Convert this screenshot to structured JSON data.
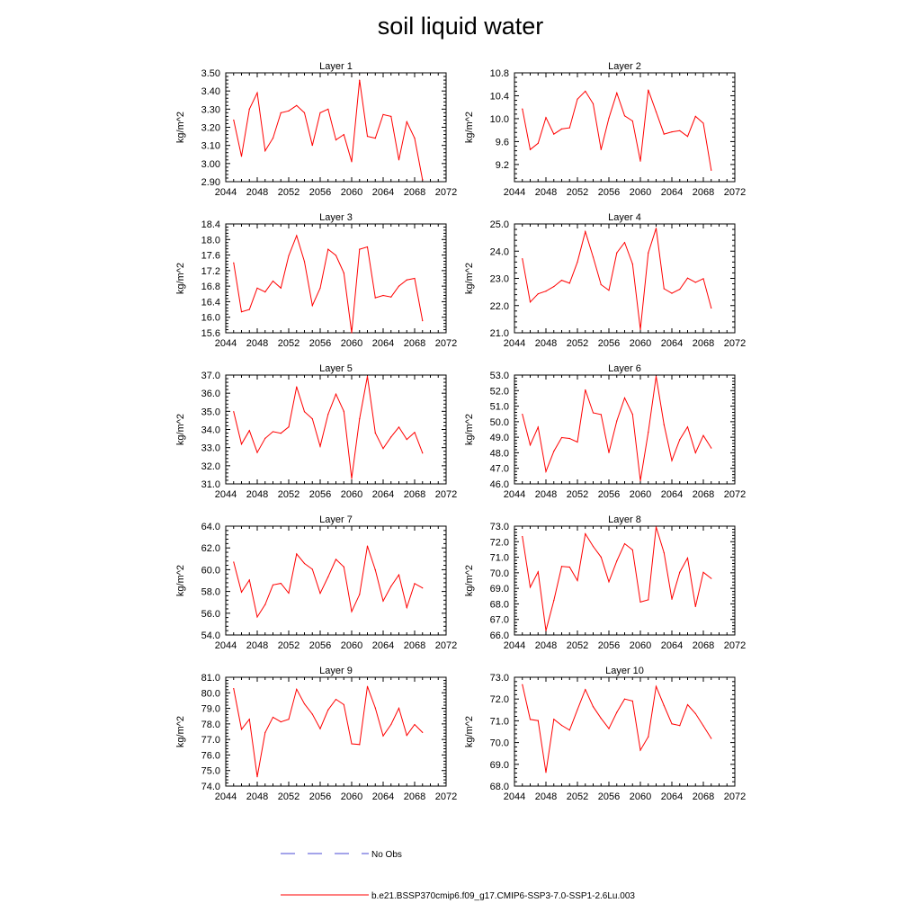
{
  "title": "soil liquid water",
  "colors": {
    "model_line": "#ff0000",
    "obs_line": "#4a4ad6",
    "axis": "#000000"
  },
  "legend": [
    {
      "label": "No Obs",
      "style": "dashed",
      "color": "#4a4ad6"
    },
    {
      "label": "b.e21.BSSP370cmip6.f09_g17.CMIP6-SSP3-7.0-SSP1-2.6Lu.003",
      "style": "solid",
      "color": "#ff0000"
    }
  ],
  "chart_data": [
    {
      "type": "line",
      "title": "Layer 1",
      "ylabel": "kg/m^2",
      "xlim": [
        2044,
        2072
      ],
      "xticks": [
        2044,
        2048,
        2052,
        2056,
        2060,
        2064,
        2068,
        2072
      ],
      "ylim": [
        2.9,
        3.5
      ],
      "yticks": [
        2.9,
        3.0,
        3.1,
        3.2,
        3.3,
        3.4,
        3.5
      ],
      "decimals": 2,
      "series": [
        {
          "x": [
            2045,
            2046,
            2047,
            2048,
            2049,
            2050,
            2051,
            2052,
            2053,
            2054,
            2055,
            2056,
            2057,
            2058,
            2059,
            2060,
            2061,
            2062,
            2063,
            2064,
            2065,
            2066,
            2067,
            2068,
            2069
          ],
          "values": [
            3.24,
            3.04,
            3.3,
            3.39,
            3.07,
            3.14,
            3.28,
            3.29,
            3.32,
            3.28,
            3.1,
            3.28,
            3.3,
            3.13,
            3.16,
            3.01,
            3.46,
            3.15,
            3.14,
            3.27,
            3.26,
            3.02,
            3.23,
            3.14,
            2.91
          ]
        }
      ]
    },
    {
      "type": "line",
      "title": "Layer 2",
      "ylabel": "kg/m^2",
      "xlim": [
        2044,
        2072
      ],
      "xticks": [
        2044,
        2048,
        2052,
        2056,
        2060,
        2064,
        2068,
        2072
      ],
      "ylim": [
        8.9,
        10.8
      ],
      "yticks": [
        9.2,
        9.6,
        10.0,
        10.4,
        10.8
      ],
      "decimals": 1,
      "series": [
        {
          "x": [
            2045,
            2046,
            2047,
            2048,
            2049,
            2050,
            2051,
            2052,
            2053,
            2054,
            2055,
            2056,
            2057,
            2058,
            2059,
            2060,
            2061,
            2062,
            2063,
            2064,
            2065,
            2066,
            2067,
            2068,
            2069
          ],
          "values": [
            10.17,
            9.46,
            9.57,
            10.02,
            9.73,
            9.82,
            9.84,
            10.34,
            10.48,
            10.26,
            9.46,
            10.01,
            10.45,
            10.05,
            9.96,
            9.26,
            10.5,
            10.12,
            9.73,
            9.77,
            9.79,
            9.69,
            10.04,
            9.92,
            9.1
          ]
        }
      ]
    },
    {
      "type": "line",
      "title": "Layer 3",
      "ylabel": "kg/m^2",
      "xlim": [
        2044,
        2072
      ],
      "xticks": [
        2044,
        2048,
        2052,
        2056,
        2060,
        2064,
        2068,
        2072
      ],
      "ylim": [
        15.6,
        18.4
      ],
      "yticks": [
        15.6,
        16.0,
        16.4,
        16.8,
        17.2,
        17.6,
        18.0,
        18.4
      ],
      "decimals": 1,
      "series": [
        {
          "x": [
            2045,
            2046,
            2047,
            2048,
            2049,
            2050,
            2051,
            2052,
            2053,
            2054,
            2055,
            2056,
            2057,
            2058,
            2059,
            2060,
            2061,
            2062,
            2063,
            2064,
            2065,
            2066,
            2067,
            2068,
            2069
          ],
          "values": [
            17.4,
            16.14,
            16.2,
            16.75,
            16.65,
            16.93,
            16.75,
            17.58,
            18.1,
            17.43,
            16.3,
            16.75,
            17.75,
            17.59,
            17.14,
            15.6,
            17.75,
            17.81,
            16.5,
            16.56,
            16.52,
            16.8,
            16.96,
            17.0,
            15.91
          ]
        }
      ]
    },
    {
      "type": "line",
      "title": "Layer 4",
      "ylabel": "kg/m^2",
      "xlim": [
        2044,
        2072
      ],
      "xticks": [
        2044,
        2048,
        2052,
        2056,
        2060,
        2064,
        2068,
        2072
      ],
      "ylim": [
        21.0,
        25.0
      ],
      "yticks": [
        21.0,
        22.0,
        23.0,
        24.0,
        25.0
      ],
      "decimals": 1,
      "series": [
        {
          "x": [
            2045,
            2046,
            2047,
            2048,
            2049,
            2050,
            2051,
            2052,
            2053,
            2054,
            2055,
            2056,
            2057,
            2058,
            2059,
            2060,
            2061,
            2062,
            2063,
            2064,
            2065,
            2066,
            2067,
            2068,
            2069
          ],
          "values": [
            23.72,
            22.13,
            22.43,
            22.53,
            22.7,
            22.93,
            22.82,
            23.6,
            24.72,
            23.78,
            22.77,
            22.56,
            23.94,
            24.32,
            23.53,
            21.12,
            23.94,
            24.84,
            22.62,
            22.45,
            22.6,
            23.01,
            22.85,
            22.99,
            21.91
          ]
        }
      ]
    },
    {
      "type": "line",
      "title": "Layer 5",
      "ylabel": "kg/m^2",
      "xlim": [
        2044,
        2072
      ],
      "xticks": [
        2044,
        2048,
        2052,
        2056,
        2060,
        2064,
        2068,
        2072
      ],
      "ylim": [
        31.0,
        37.0
      ],
      "yticks": [
        31.0,
        32.0,
        33.0,
        34.0,
        35.0,
        36.0,
        37.0
      ],
      "decimals": 1,
      "series": [
        {
          "x": [
            2045,
            2046,
            2047,
            2048,
            2049,
            2050,
            2051,
            2052,
            2053,
            2054,
            2055,
            2056,
            2057,
            2058,
            2059,
            2060,
            2061,
            2062,
            2063,
            2064,
            2065,
            2066,
            2067,
            2068,
            2069
          ],
          "values": [
            34.98,
            33.19,
            33.94,
            32.73,
            33.51,
            33.88,
            33.79,
            34.14,
            36.35,
            34.98,
            34.59,
            33.07,
            34.84,
            35.95,
            35.0,
            31.3,
            34.59,
            36.93,
            33.81,
            32.95,
            33.59,
            34.13,
            33.45,
            33.84,
            32.7
          ]
        }
      ]
    },
    {
      "type": "line",
      "title": "Layer 6",
      "ylabel": "kg/m^2",
      "xlim": [
        2044,
        2072
      ],
      "xticks": [
        2044,
        2048,
        2052,
        2056,
        2060,
        2064,
        2068,
        2072
      ],
      "ylim": [
        46.0,
        53.0
      ],
      "yticks": [
        46.0,
        47.0,
        48.0,
        49.0,
        50.0,
        51.0,
        52.0,
        53.0
      ],
      "decimals": 1,
      "series": [
        {
          "x": [
            2045,
            2046,
            2047,
            2048,
            2049,
            2050,
            2051,
            2052,
            2053,
            2054,
            2055,
            2056,
            2057,
            2058,
            2059,
            2060,
            2061,
            2062,
            2063,
            2064,
            2065,
            2066,
            2067,
            2068,
            2069
          ],
          "values": [
            50.48,
            48.5,
            49.65,
            46.79,
            48.1,
            48.98,
            48.92,
            48.69,
            52.05,
            50.57,
            50.46,
            48.01,
            50.05,
            51.53,
            50.48,
            46.2,
            49.33,
            52.92,
            49.81,
            47.5,
            48.85,
            49.67,
            48.0,
            49.11,
            48.31
          ]
        }
      ]
    },
    {
      "type": "line",
      "title": "Layer 7",
      "ylabel": "kg/m^2",
      "xlim": [
        2044,
        2072
      ],
      "xticks": [
        2044,
        2048,
        2052,
        2056,
        2060,
        2064,
        2068,
        2072
      ],
      "ylim": [
        54.0,
        64.0
      ],
      "yticks": [
        54.0,
        56.0,
        58.0,
        60.0,
        62.0,
        64.0
      ],
      "decimals": 1,
      "series": [
        {
          "x": [
            2045,
            2046,
            2047,
            2048,
            2049,
            2050,
            2051,
            2052,
            2053,
            2054,
            2055,
            2056,
            2057,
            2058,
            2059,
            2060,
            2061,
            2062,
            2063,
            2064,
            2065,
            2066,
            2067,
            2068,
            2069
          ],
          "values": [
            60.7,
            57.93,
            59.05,
            55.65,
            56.79,
            58.6,
            58.74,
            57.84,
            61.45,
            60.57,
            60.04,
            57.83,
            59.34,
            60.95,
            60.26,
            56.15,
            57.73,
            62.17,
            59.98,
            57.12,
            58.47,
            59.53,
            56.52,
            58.73,
            58.32
          ]
        }
      ]
    },
    {
      "type": "line",
      "title": "Layer 8",
      "ylabel": "kg/m^2",
      "xlim": [
        2044,
        2072
      ],
      "xticks": [
        2044,
        2048,
        2052,
        2056,
        2060,
        2064,
        2068,
        2072
      ],
      "ylim": [
        66.0,
        73.0
      ],
      "yticks": [
        66.0,
        67.0,
        68.0,
        69.0,
        70.0,
        71.0,
        72.0,
        73.0
      ],
      "decimals": 1,
      "series": [
        {
          "x": [
            2045,
            2046,
            2047,
            2048,
            2049,
            2050,
            2051,
            2052,
            2053,
            2054,
            2055,
            2056,
            2057,
            2058,
            2059,
            2060,
            2061,
            2062,
            2063,
            2064,
            2065,
            2066,
            2067,
            2068,
            2069
          ],
          "values": [
            72.33,
            69.07,
            70.06,
            66.28,
            68.22,
            70.41,
            70.37,
            69.5,
            72.51,
            71.7,
            71.01,
            69.42,
            70.76,
            71.87,
            71.47,
            68.12,
            68.26,
            72.95,
            71.29,
            68.3,
            70.04,
            70.95,
            67.83,
            70.03,
            69.64
          ]
        }
      ]
    },
    {
      "type": "line",
      "title": "Layer 9",
      "ylabel": "kg/m^2",
      "xlim": [
        2044,
        2072
      ],
      "xticks": [
        2044,
        2048,
        2052,
        2056,
        2060,
        2064,
        2068,
        2072
      ],
      "ylim": [
        74.0,
        81.0
      ],
      "yticks": [
        74.0,
        75.0,
        76.0,
        77.0,
        78.0,
        79.0,
        80.0,
        81.0
      ],
      "decimals": 1,
      "series": [
        {
          "x": [
            2045,
            2046,
            2047,
            2048,
            2049,
            2050,
            2051,
            2052,
            2053,
            2054,
            2055,
            2056,
            2057,
            2058,
            2059,
            2060,
            2061,
            2062,
            2063,
            2064,
            2065,
            2066,
            2067,
            2068,
            2069
          ],
          "values": [
            80.27,
            77.65,
            78.3,
            74.6,
            77.44,
            78.43,
            78.13,
            78.3,
            80.23,
            79.29,
            78.63,
            77.69,
            78.9,
            79.58,
            79.24,
            76.72,
            76.67,
            80.41,
            79.03,
            77.23,
            77.96,
            79.01,
            77.26,
            77.96,
            77.45
          ]
        }
      ]
    },
    {
      "type": "line",
      "title": "Layer 10",
      "ylabel": "kg/m^2",
      "xlim": [
        2044,
        2072
      ],
      "xticks": [
        2044,
        2048,
        2052,
        2056,
        2060,
        2064,
        2068,
        2072
      ],
      "ylim": [
        68.0,
        73.0
      ],
      "yticks": [
        68.0,
        69.0,
        70.0,
        71.0,
        72.0,
        73.0
      ],
      "decimals": 1,
      "series": [
        {
          "x": [
            2045,
            2046,
            2047,
            2048,
            2049,
            2050,
            2051,
            2052,
            2053,
            2054,
            2055,
            2056,
            2057,
            2058,
            2059,
            2060,
            2061,
            2062,
            2063,
            2064,
            2065,
            2066,
            2067,
            2068,
            2069
          ],
          "values": [
            72.66,
            71.06,
            71.01,
            68.63,
            71.07,
            70.79,
            70.57,
            71.51,
            72.44,
            71.65,
            71.11,
            70.64,
            71.39,
            72.0,
            71.91,
            69.65,
            70.27,
            72.58,
            71.7,
            70.86,
            70.78,
            71.74,
            71.33,
            70.77,
            70.19
          ]
        }
      ]
    }
  ]
}
